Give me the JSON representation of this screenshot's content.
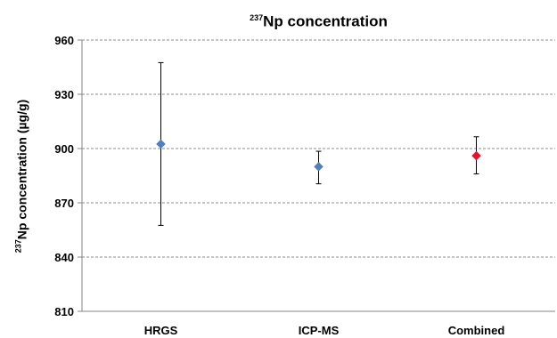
{
  "chart_data": {
    "type": "scatter",
    "title": {
      "superscript": "237",
      "text": "Np concentration"
    },
    "ylabel": {
      "superscript": "237",
      "text": "Np concentration (µg/g)"
    },
    "xlabel": "",
    "categories": [
      "HRGS",
      "ICP-MS",
      "Combined"
    ],
    "ylim": [
      810,
      960
    ],
    "yticks": [
      810,
      840,
      870,
      900,
      930,
      960
    ],
    "grid": true,
    "gridline_style": "dashed",
    "legend": "none",
    "points": [
      {
        "category": "HRGS",
        "value": 902.5,
        "error_low": 857.5,
        "error_high": 947.5,
        "color": "#4f81bd"
      },
      {
        "category": "ICP-MS",
        "value": 890,
        "error_low": 880.5,
        "error_high": 898.5,
        "color": "#4f81bd"
      },
      {
        "category": "Combined",
        "value": 896,
        "error_low": 886,
        "error_high": 906.5,
        "color": "#e8112d"
      }
    ],
    "marker": "diamond"
  }
}
